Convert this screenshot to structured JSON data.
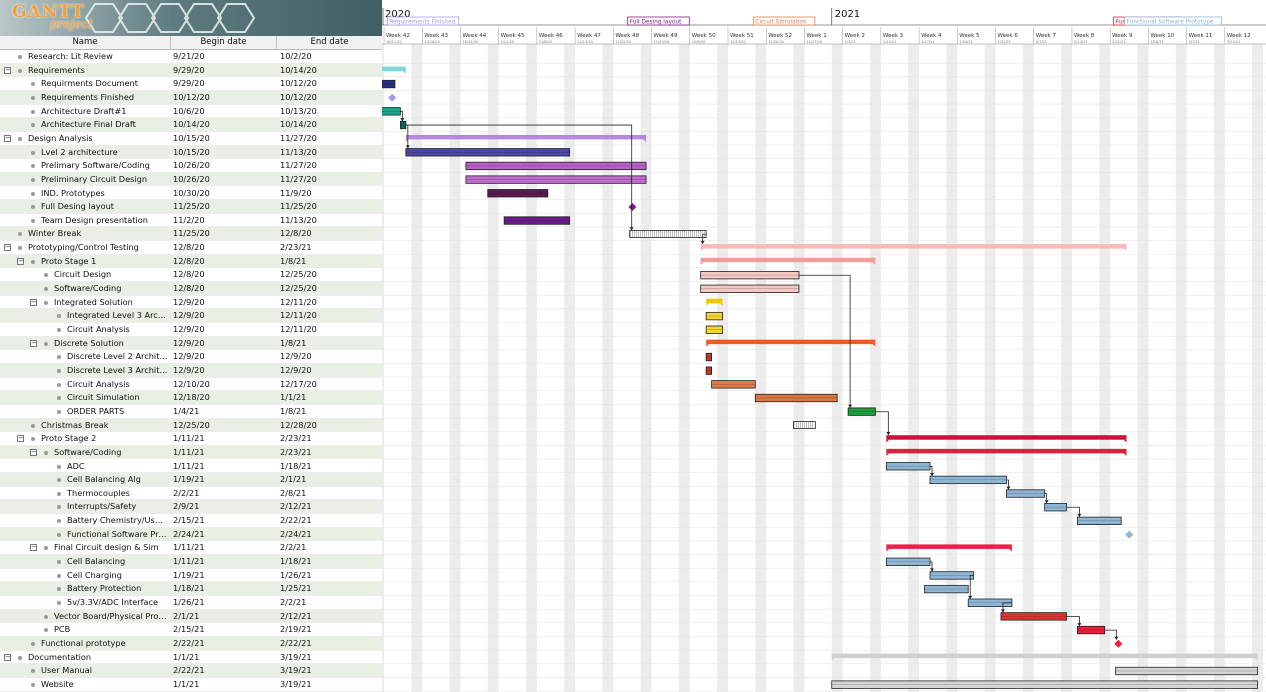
{
  "app": {
    "logo_top": "GANTT",
    "logo_bottom": "project"
  },
  "columns": {
    "name": "Name",
    "begin": "Begin date",
    "end": "End date"
  },
  "years": [
    "2020",
    "2021"
  ],
  "weeks": [
    {
      "label": "Week 42",
      "date": "10/11/20"
    },
    {
      "label": "Week 43",
      "date": "10/18/20"
    },
    {
      "label": "Week 44",
      "date": "10/25/20"
    },
    {
      "label": "Week 45",
      "date": "11/1/20"
    },
    {
      "label": "Week 46",
      "date": "11/8/20"
    },
    {
      "label": "Week 47",
      "date": "11/15/20"
    },
    {
      "label": "Week 48",
      "date": "11/22/20"
    },
    {
      "label": "Week 49",
      "date": "11/29/20"
    },
    {
      "label": "Week 50",
      "date": "12/6/20"
    },
    {
      "label": "Week 51",
      "date": "12/13/20"
    },
    {
      "label": "Week 52",
      "date": "12/20/20"
    },
    {
      "label": "Week 1",
      "date": "12/27/20"
    },
    {
      "label": "Week 2",
      "date": "1/3/21"
    },
    {
      "label": "Week 3",
      "date": "1/10/21"
    },
    {
      "label": "Week 4",
      "date": "1/17/21"
    },
    {
      "label": "Week 5",
      "date": "1/24/21"
    },
    {
      "label": "Week 6",
      "date": "1/31/21"
    },
    {
      "label": "Week 7",
      "date": "2/7/21"
    },
    {
      "label": "Week 8",
      "date": "2/14/21"
    },
    {
      "label": "Week 9",
      "date": "2/21/21"
    },
    {
      "label": "Week 10",
      "date": "2/28/21"
    },
    {
      "label": "Week 11",
      "date": "3/7/21"
    },
    {
      "label": "Week 12",
      "date": "3/14/21"
    }
  ],
  "milestone_labels": [
    {
      "text": "Requirements Finished",
      "color": "#9d9df0",
      "date": "10/12/20"
    },
    {
      "text": "Full Desing layout",
      "color": "#7a1f86",
      "date": "11/25/20"
    },
    {
      "text": "Circuit Simulation",
      "color": "#e07a4a",
      "date": "12/18/20"
    },
    {
      "text": "Functional prototype",
      "color": "#d8243a",
      "date": "2/22/21"
    },
    {
      "text": "Functional Software Prototype",
      "color": "#8fb5d6",
      "date": "2/24/21"
    }
  ],
  "tasks": [
    {
      "name": "Research: Lit Review",
      "begin": "9/21/20",
      "end": "10/2/20",
      "level": 0,
      "exp": "",
      "color": "#3c3c3c",
      "type": "bar"
    },
    {
      "name": "Requirements",
      "begin": "9/29/20",
      "end": "10/14/20",
      "level": 0,
      "exp": "−",
      "color": "#7fd6d9",
      "type": "summary"
    },
    {
      "name": "Requirments Document",
      "begin": "9/29/20",
      "end": "10/12/20",
      "level": 1,
      "exp": "",
      "color": "#2a2f8f",
      "type": "bar"
    },
    {
      "name": "Requirements Finished",
      "begin": "10/12/20",
      "end": "10/12/20",
      "level": 1,
      "exp": "",
      "color": "#9d9df0",
      "type": "milestone"
    },
    {
      "name": "Architecture Draft#1",
      "begin": "10/6/20",
      "end": "10/13/20",
      "level": 1,
      "exp": "",
      "color": "#1aa38a",
      "type": "bar"
    },
    {
      "name": "Architecture Final Draft",
      "begin": "10/14/20",
      "end": "10/14/20",
      "level": 1,
      "exp": "",
      "color": "#12665e",
      "type": "bar"
    },
    {
      "name": "Design Analysis",
      "begin": "10/15/20",
      "end": "11/27/20",
      "level": 0,
      "exp": "−",
      "color": "#b589e0",
      "type": "summary"
    },
    {
      "name": "Lvel 2 architecture",
      "begin": "10/15/20",
      "end": "11/13/20",
      "level": 1,
      "exp": "",
      "color": "#4848a8",
      "type": "bar"
    },
    {
      "name": "Prelimary Software/Coding",
      "begin": "10/26/20",
      "end": "11/27/20",
      "level": 1,
      "exp": "",
      "color": "#b65fc6",
      "type": "bar"
    },
    {
      "name": "Preliminary Circuit Design",
      "begin": "10/26/20",
      "end": "11/27/20",
      "level": 1,
      "exp": "",
      "color": "#c06bd0",
      "type": "bar"
    },
    {
      "name": "IND. Prototypes",
      "begin": "10/30/20",
      "end": "11/9/20",
      "level": 1,
      "exp": "",
      "color": "#5a1a4e",
      "type": "bar"
    },
    {
      "name": "Full Desing layout",
      "begin": "11/25/20",
      "end": "11/25/20",
      "level": 1,
      "exp": "",
      "color": "#7a1f86",
      "type": "milestone"
    },
    {
      "name": "Team Design presentation",
      "begin": "11/2/20",
      "end": "11/13/20",
      "level": 1,
      "exp": "",
      "color": "#6a1a8a",
      "type": "bar"
    },
    {
      "name": "Winter Break",
      "begin": "11/25/20",
      "end": "12/8/20",
      "level": 0,
      "exp": "",
      "color": "#555555",
      "type": "hatch"
    },
    {
      "name": "Prototyping/Control Testing",
      "begin": "12/8/20",
      "end": "2/23/21",
      "level": 0,
      "exp": "−",
      "color": "#f7b9b9",
      "type": "summary"
    },
    {
      "name": "Proto Stage 1",
      "begin": "12/8/20",
      "end": "1/8/21",
      "level": 1,
      "exp": "−",
      "color": "#f39a9a",
      "type": "summary"
    },
    {
      "name": "Circuit Design",
      "begin": "12/8/20",
      "end": "12/25/20",
      "level": 2,
      "exp": "",
      "color": "#f4c8c0",
      "type": "bar"
    },
    {
      "name": "Software/Coding",
      "begin": "12/8/20",
      "end": "12/25/20",
      "level": 2,
      "exp": "",
      "color": "#f4c8c0",
      "type": "bar"
    },
    {
      "name": "Integrated Solution",
      "begin": "12/9/20",
      "end": "12/11/20",
      "level": 2,
      "exp": "−",
      "color": "#f3c400",
      "type": "summary"
    },
    {
      "name": "Integrated Level 3 Archite...",
      "begin": "12/9/20",
      "end": "12/11/20",
      "level": 3,
      "exp": "",
      "color": "#f5d437",
      "type": "bar"
    },
    {
      "name": "Circuit Analysis",
      "begin": "12/9/20",
      "end": "12/11/20",
      "level": 3,
      "exp": "",
      "color": "#f5d437",
      "type": "bar"
    },
    {
      "name": "Discrete Solution",
      "begin": "12/9/20",
      "end": "1/8/21",
      "level": 2,
      "exp": "−",
      "color": "#f15a24",
      "type": "summary"
    },
    {
      "name": "Discrete Level 2 Architecure",
      "begin": "12/9/20",
      "end": "12/9/20",
      "level": 3,
      "exp": "",
      "color": "#c0392b",
      "type": "bar"
    },
    {
      "name": "Discrete Level 3 Architect...",
      "begin": "12/9/20",
      "end": "12/9/20",
      "level": 3,
      "exp": "",
      "color": "#c0392b",
      "type": "bar"
    },
    {
      "name": "Circuit Analysis",
      "begin": "12/10/20",
      "end": "12/17/20",
      "level": 3,
      "exp": "",
      "color": "#e07a4a",
      "type": "bar"
    },
    {
      "name": "Circuit Simulation",
      "begin": "12/18/20",
      "end": "1/1/21",
      "level": 3,
      "exp": "",
      "color": "#d9783e",
      "type": "bar"
    },
    {
      "name": "ORDER PARTS",
      "begin": "1/4/21",
      "end": "1/8/21",
      "level": 3,
      "exp": "",
      "color": "#1d9e3c",
      "type": "bar"
    },
    {
      "name": "Christmas Break",
      "begin": "12/25/20",
      "end": "12/28/20",
      "level": 1,
      "exp": "",
      "color": "#555555",
      "type": "hatch"
    },
    {
      "name": "Proto Stage 2",
      "begin": "1/11/21",
      "end": "2/23/21",
      "level": 1,
      "exp": "−",
      "color": "#c8143c",
      "type": "summary"
    },
    {
      "name": "Software/Coding",
      "begin": "1/11/21",
      "end": "2/23/21",
      "level": 2,
      "exp": "−",
      "color": "#d8243a",
      "type": "summary"
    },
    {
      "name": "ADC",
      "begin": "1/11/21",
      "end": "1/18/21",
      "level": 3,
      "exp": "",
      "color": "#8fb5d6",
      "type": "bar"
    },
    {
      "name": "Cell Balancing Alg",
      "begin": "1/19/21",
      "end": "2/1/21",
      "level": 3,
      "exp": "",
      "color": "#8fb5d6",
      "type": "bar"
    },
    {
      "name": "Thermocouples",
      "begin": "2/2/21",
      "end": "2/8/21",
      "level": 3,
      "exp": "",
      "color": "#8fb5d6",
      "type": "bar"
    },
    {
      "name": "Interrupts/Safety",
      "begin": "2/9/21",
      "end": "2/12/21",
      "level": 3,
      "exp": "",
      "color": "#8fb5d6",
      "type": "bar"
    },
    {
      "name": "Battery Chemistry/User Int...",
      "begin": "2/15/21",
      "end": "2/22/21",
      "level": 3,
      "exp": "",
      "color": "#8fb5d6",
      "type": "bar"
    },
    {
      "name": "Functional Software Proto...",
      "begin": "2/24/21",
      "end": "2/24/21",
      "level": 3,
      "exp": "",
      "color": "#8fb5d6",
      "type": "milestone"
    },
    {
      "name": "Final Circuit design & Sim",
      "begin": "1/11/21",
      "end": "2/2/21",
      "level": 2,
      "exp": "−",
      "color": "#e8204a",
      "type": "summary"
    },
    {
      "name": "Cell Balancing",
      "begin": "1/11/21",
      "end": "1/18/21",
      "level": 3,
      "exp": "",
      "color": "#8fb5d6",
      "type": "bar"
    },
    {
      "name": "Cell Charging",
      "begin": "1/19/21",
      "end": "1/26/21",
      "level": 3,
      "exp": "",
      "color": "#8fb5d6",
      "type": "bar"
    },
    {
      "name": "Battery Protection",
      "begin": "1/18/21",
      "end": "1/25/21",
      "level": 3,
      "exp": "",
      "color": "#8fb5d6",
      "type": "bar"
    },
    {
      "name": "5v/3.3V/ADC Interface",
      "begin": "1/26/21",
      "end": "2/2/21",
      "level": 3,
      "exp": "",
      "color": "#8fb5d6",
      "type": "bar"
    },
    {
      "name": "Vector Board/Physical Prototy...",
      "begin": "2/1/21",
      "end": "2/12/21",
      "level": 2,
      "exp": "",
      "color": "#e03030",
      "type": "bar"
    },
    {
      "name": "PCB",
      "begin": "2/15/21",
      "end": "2/19/21",
      "level": 2,
      "exp": "",
      "color": "#e8203a",
      "type": "bar"
    },
    {
      "name": "Functional prototype",
      "begin": "2/22/21",
      "end": "2/22/21",
      "level": 1,
      "exp": "",
      "color": "#e8203a",
      "type": "milestone"
    },
    {
      "name": "Documentation",
      "begin": "1/1/21",
      "end": "3/19/21",
      "level": 0,
      "exp": "−",
      "color": "#cfcfcf",
      "type": "summary"
    },
    {
      "name": "User Manual",
      "begin": "2/22/21",
      "end": "3/19/21",
      "level": 1,
      "exp": "",
      "color": "#d4d4d4",
      "type": "bar"
    },
    {
      "name": "Website",
      "begin": "1/1/21",
      "end": "3/19/21",
      "level": 1,
      "exp": "",
      "color": "#d4d4d4",
      "type": "bar"
    }
  ]
}
